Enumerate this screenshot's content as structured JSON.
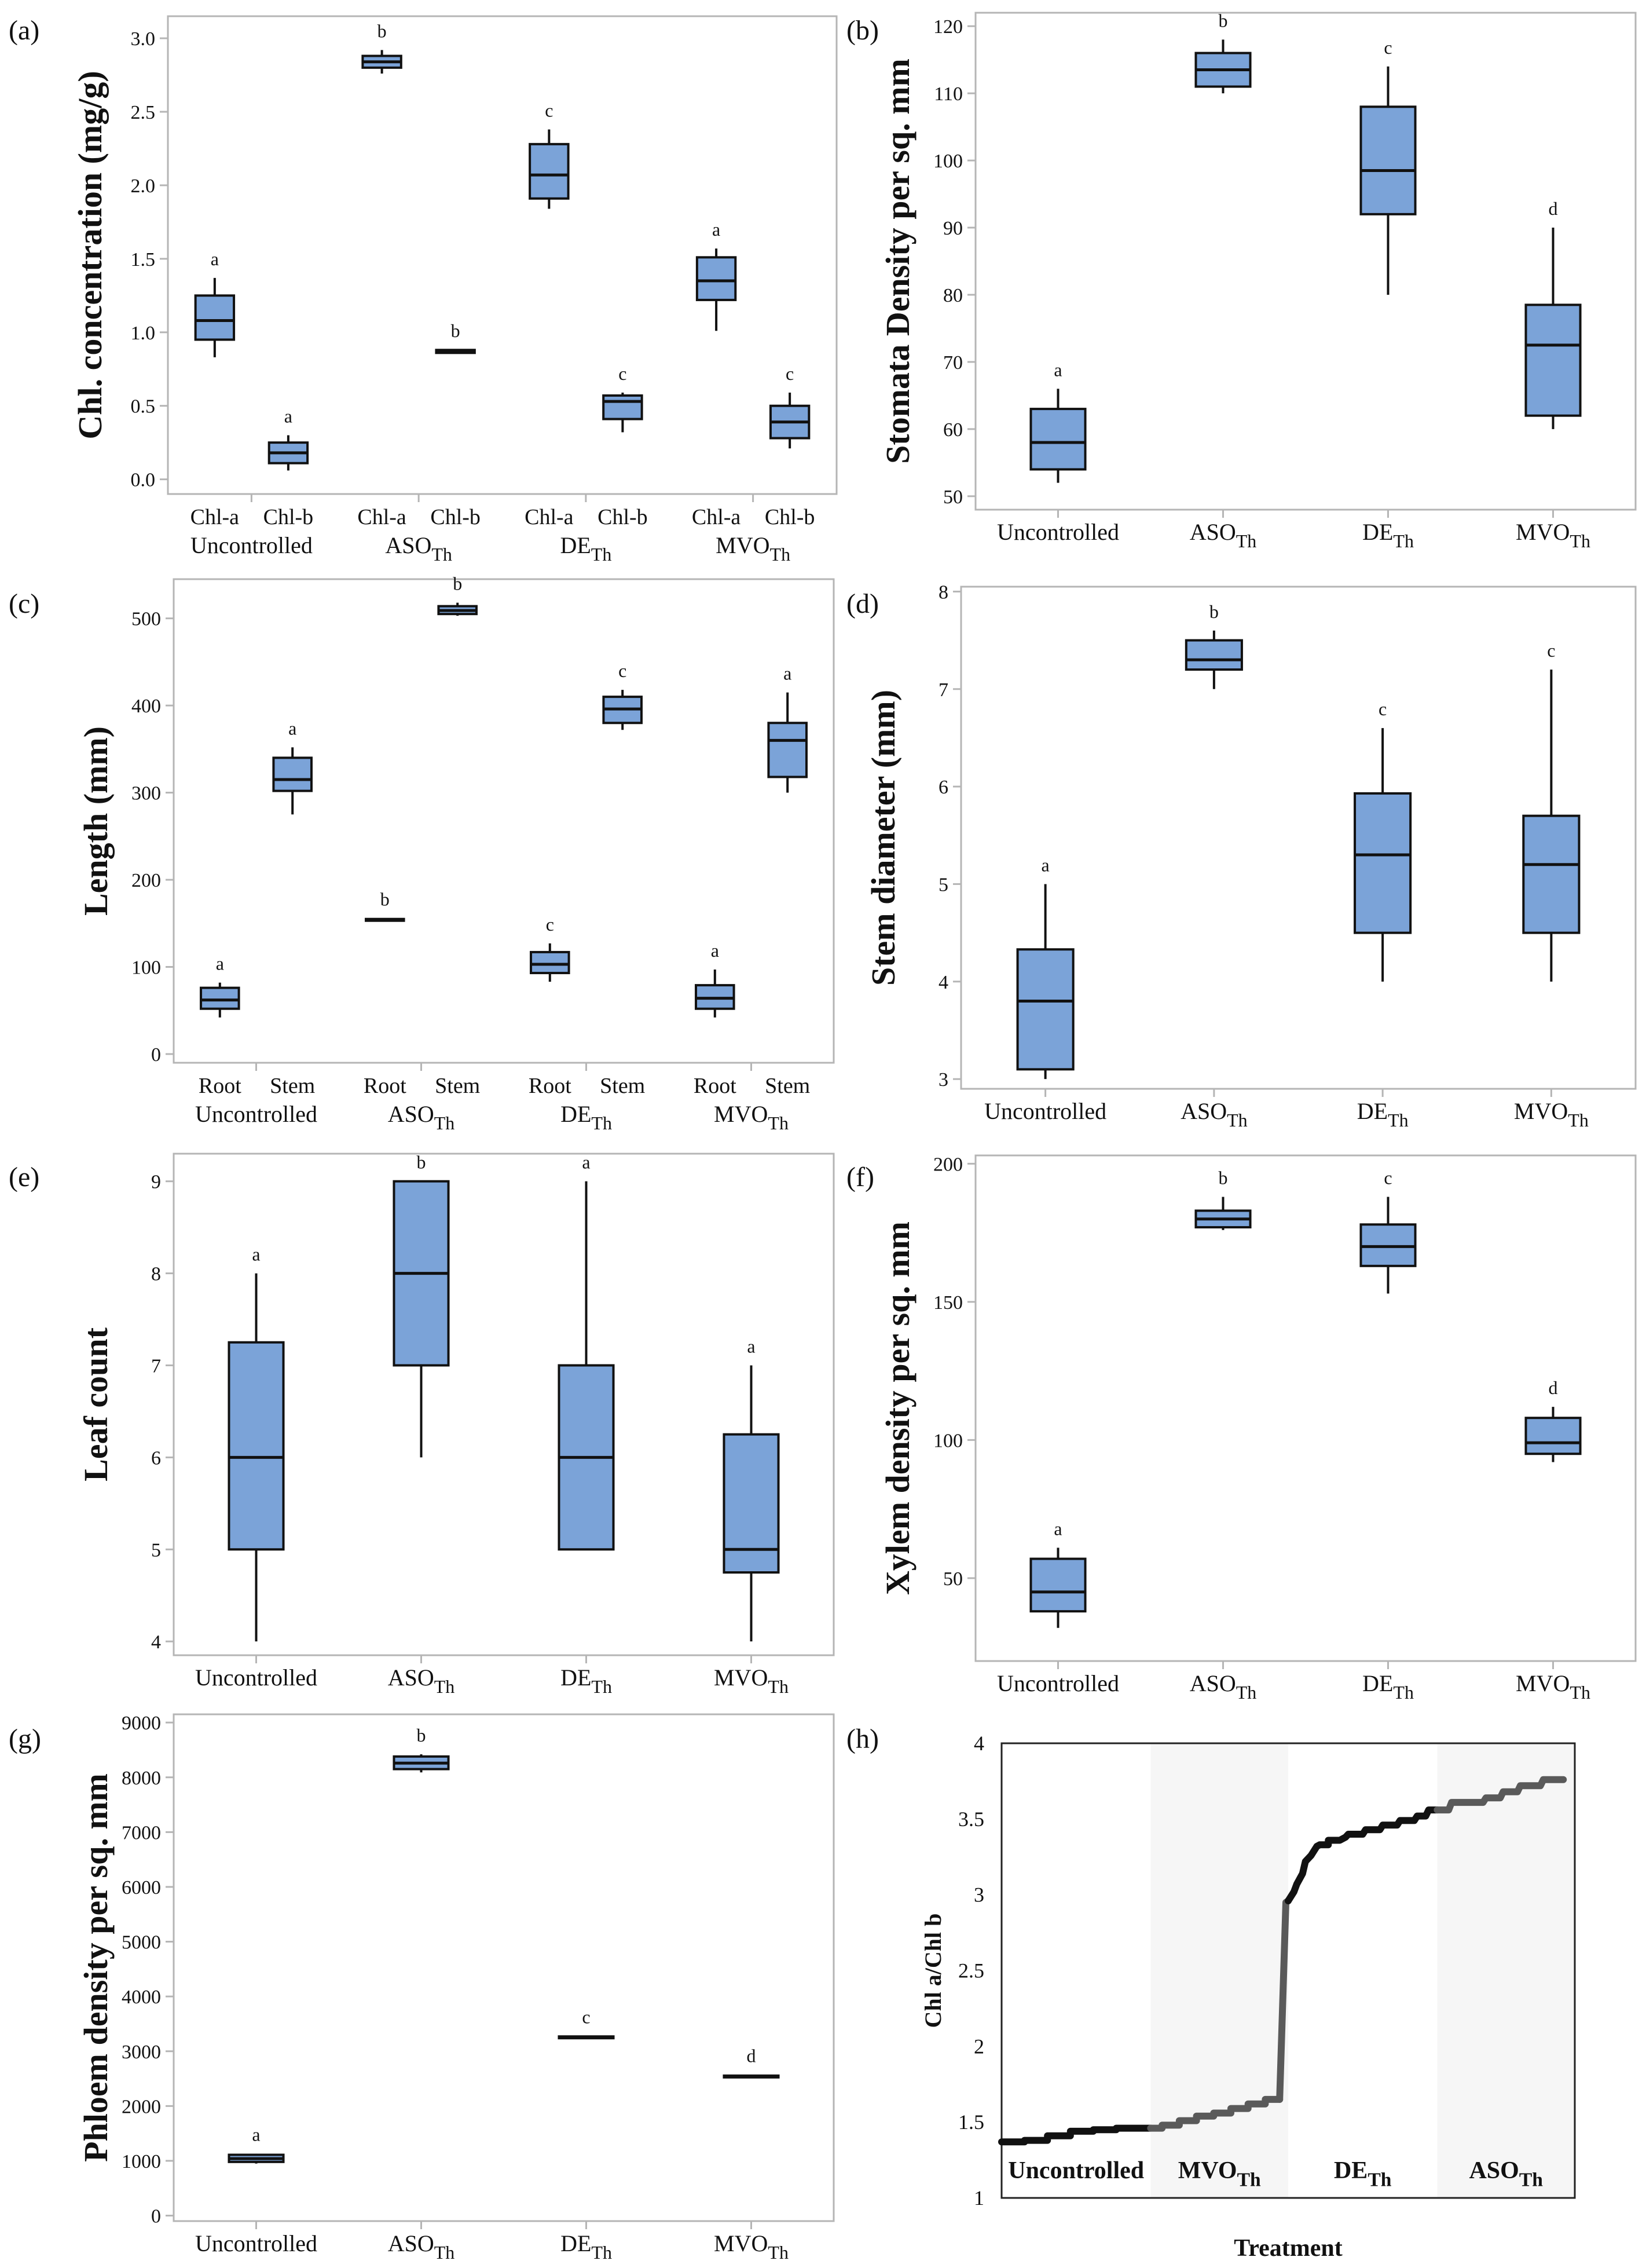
{
  "colors": {
    "box_fill": "#7ba3d8",
    "box_stroke": "#111111",
    "axis_frame": "#b5b5b5",
    "line_dark": "#111111",
    "line_grey": "#5a5a5a",
    "band": "#f6f6f6"
  },
  "chart_data": [
    {
      "id": "a",
      "panel_label": "(a)",
      "type": "boxplot",
      "ylabel": "Chl. concentration (mg/g)",
      "ylim": [
        -0.1,
        3.15
      ],
      "yticks": [
        0.0,
        0.5,
        1.0,
        1.5,
        2.0,
        2.5,
        3.0
      ],
      "ytick_labels": [
        "0.0",
        "0.5",
        "1.0",
        "1.5",
        "2.0",
        "2.5",
        "3.0"
      ],
      "groups": [
        {
          "label": "Uncontrolled",
          "sub": ""
        },
        {
          "label": "ASO",
          "sub": "Th"
        },
        {
          "label": "DE",
          "sub": "Th"
        },
        {
          "label": "MVO",
          "sub": "Th"
        }
      ],
      "boxes": [
        {
          "group": 0,
          "label": "Chl-a",
          "min": 0.83,
          "q1": 0.95,
          "median": 1.08,
          "q3": 1.25,
          "max": 1.37,
          "letter": "a"
        },
        {
          "group": 0,
          "label": "Chl-b",
          "min": 0.06,
          "q1": 0.11,
          "median": 0.18,
          "q3": 0.25,
          "max": 0.3,
          "letter": "a"
        },
        {
          "group": 1,
          "label": "Chl-a",
          "min": 2.76,
          "q1": 2.8,
          "median": 2.84,
          "q3": 2.88,
          "max": 2.92,
          "letter": "b"
        },
        {
          "group": 1,
          "label": "Chl-b",
          "min": 0.86,
          "q1": 0.86,
          "median": 0.87,
          "q3": 0.88,
          "max": 0.88,
          "letter": "b"
        },
        {
          "group": 2,
          "label": "Chl-a",
          "min": 1.84,
          "q1": 1.91,
          "median": 2.07,
          "q3": 2.28,
          "max": 2.38,
          "letter": "c"
        },
        {
          "group": 2,
          "label": "Chl-b",
          "min": 0.32,
          "q1": 0.41,
          "median": 0.53,
          "q3": 0.57,
          "max": 0.59,
          "letter": "c"
        },
        {
          "group": 3,
          "label": "Chl-a",
          "min": 1.01,
          "q1": 1.22,
          "median": 1.35,
          "q3": 1.51,
          "max": 1.57,
          "letter": "a"
        },
        {
          "group": 3,
          "label": "Chl-b",
          "min": 0.21,
          "q1": 0.28,
          "median": 0.39,
          "q3": 0.5,
          "max": 0.59,
          "letter": "c"
        }
      ]
    },
    {
      "id": "b",
      "panel_label": "(b)",
      "type": "boxplot",
      "ylabel": "Stomata Density per sq. mm",
      "ylim": [
        48,
        122
      ],
      "yticks": [
        50,
        60,
        70,
        80,
        90,
        100,
        110,
        120
      ],
      "ytick_labels": [
        "50",
        "60",
        "70",
        "80",
        "90",
        "100",
        "110",
        "120"
      ],
      "groups": [
        {
          "label": "Uncontrolled",
          "sub": ""
        },
        {
          "label": "ASO",
          "sub": "Th"
        },
        {
          "label": "DE",
          "sub": "Th"
        },
        {
          "label": "MVO",
          "sub": "Th"
        }
      ],
      "boxes": [
        {
          "group": 0,
          "label": "",
          "min": 52,
          "q1": 54,
          "median": 58,
          "q3": 63,
          "max": 66,
          "letter": "a"
        },
        {
          "group": 1,
          "label": "",
          "min": 110,
          "q1": 111,
          "median": 113.5,
          "q3": 116,
          "max": 118,
          "letter": "b"
        },
        {
          "group": 2,
          "label": "",
          "min": 80,
          "q1": 92,
          "median": 98.5,
          "q3": 108,
          "max": 114,
          "letter": "c"
        },
        {
          "group": 3,
          "label": "",
          "min": 60,
          "q1": 62,
          "median": 72.5,
          "q3": 78.5,
          "max": 90,
          "letter": "d"
        }
      ]
    },
    {
      "id": "c",
      "panel_label": "(c)",
      "type": "boxplot",
      "ylabel": "Length (mm)",
      "ylim": [
        -10,
        545
      ],
      "yticks": [
        0,
        100,
        200,
        300,
        400,
        500
      ],
      "ytick_labels": [
        "0",
        "100",
        "200",
        "300",
        "400",
        "500"
      ],
      "groups": [
        {
          "label": "Uncontrolled",
          "sub": ""
        },
        {
          "label": "ASO",
          "sub": "Th"
        },
        {
          "label": "DE",
          "sub": "Th"
        },
        {
          "label": "MVO",
          "sub": "Th"
        }
      ],
      "boxes": [
        {
          "group": 0,
          "label": "Root",
          "min": 42,
          "q1": 52,
          "median": 62,
          "q3": 76,
          "max": 82,
          "letter": "a"
        },
        {
          "group": 0,
          "label": "Stem",
          "min": 275,
          "q1": 302,
          "median": 315,
          "q3": 340,
          "max": 352,
          "letter": "a"
        },
        {
          "group": 1,
          "label": "Root",
          "min": 152,
          "q1": 153,
          "median": 154,
          "q3": 155,
          "max": 156,
          "letter": "b"
        },
        {
          "group": 1,
          "label": "Stem",
          "min": 503,
          "q1": 505,
          "median": 509,
          "q3": 514,
          "max": 518,
          "letter": "b"
        },
        {
          "group": 2,
          "label": "Root",
          "min": 83,
          "q1": 93,
          "median": 103,
          "q3": 117,
          "max": 127,
          "letter": "c"
        },
        {
          "group": 2,
          "label": "Stem",
          "min": 372,
          "q1": 380,
          "median": 396,
          "q3": 410,
          "max": 418,
          "letter": "c"
        },
        {
          "group": 3,
          "label": "Root",
          "min": 42,
          "q1": 52,
          "median": 64,
          "q3": 79,
          "max": 97,
          "letter": "a"
        },
        {
          "group": 3,
          "label": "Stem",
          "min": 300,
          "q1": 318,
          "median": 360,
          "q3": 380,
          "max": 415,
          "letter": "a"
        }
      ]
    },
    {
      "id": "d",
      "panel_label": "(d)",
      "type": "boxplot",
      "ylabel": "Stem diameter (mm)",
      "ylim": [
        2.9,
        8.05
      ],
      "yticks": [
        3,
        4,
        5,
        6,
        7,
        8
      ],
      "ytick_labels": [
        "3",
        "4",
        "5",
        "6",
        "7",
        "8"
      ],
      "groups": [
        {
          "label": "Uncontrolled",
          "sub": ""
        },
        {
          "label": "ASO",
          "sub": "Th"
        },
        {
          "label": "DE",
          "sub": "Th"
        },
        {
          "label": "MVO",
          "sub": "Th"
        }
      ],
      "boxes": [
        {
          "group": 0,
          "label": "",
          "min": 3.0,
          "q1": 3.1,
          "median": 3.8,
          "q3": 4.33,
          "max": 5.0,
          "letter": "a"
        },
        {
          "group": 1,
          "label": "",
          "min": 7.0,
          "q1": 7.2,
          "median": 7.3,
          "q3": 7.5,
          "max": 7.6,
          "letter": "b"
        },
        {
          "group": 2,
          "label": "",
          "min": 4.0,
          "q1": 4.5,
          "median": 5.3,
          "q3": 5.93,
          "max": 6.6,
          "letter": "c"
        },
        {
          "group": 3,
          "label": "",
          "min": 4.0,
          "q1": 4.5,
          "median": 5.2,
          "q3": 5.7,
          "max": 7.2,
          "letter": "c"
        }
      ]
    },
    {
      "id": "e",
      "panel_label": "(e)",
      "type": "boxplot",
      "ylabel": "Leaf count",
      "ylim": [
        3.85,
        9.3
      ],
      "yticks": [
        4,
        5,
        6,
        7,
        8,
        9
      ],
      "ytick_labels": [
        "4",
        "5",
        "6",
        "7",
        "8",
        "9"
      ],
      "groups": [
        {
          "label": "Uncontrolled",
          "sub": ""
        },
        {
          "label": "ASO",
          "sub": "Th"
        },
        {
          "label": "DE",
          "sub": "Th"
        },
        {
          "label": "MVO",
          "sub": "Th"
        }
      ],
      "boxes": [
        {
          "group": 0,
          "label": "",
          "min": 4,
          "q1": 5,
          "median": 6,
          "q3": 7.25,
          "max": 8,
          "letter": "a"
        },
        {
          "group": 1,
          "label": "",
          "min": 6,
          "q1": 7,
          "median": 8,
          "q3": 9,
          "max": 9,
          "letter": "b"
        },
        {
          "group": 2,
          "label": "",
          "min": 5,
          "q1": 5,
          "median": 6,
          "q3": 7,
          "max": 9,
          "letter": "a"
        },
        {
          "group": 3,
          "label": "",
          "min": 4,
          "q1": 4.75,
          "median": 5,
          "q3": 6.25,
          "max": 7,
          "letter": "a"
        }
      ]
    },
    {
      "id": "f",
      "panel_label": "(f)",
      "type": "boxplot",
      "ylabel": "Xylem density per sq. mm",
      "ylim": [
        20,
        203
      ],
      "yticks": [
        50,
        100,
        150,
        200
      ],
      "ytick_labels": [
        "50",
        "100",
        "150",
        "200"
      ],
      "groups": [
        {
          "label": "Uncontrolled",
          "sub": ""
        },
        {
          "label": "ASO",
          "sub": "Th"
        },
        {
          "label": "DE",
          "sub": "Th"
        },
        {
          "label": "MVO",
          "sub": "Th"
        }
      ],
      "boxes": [
        {
          "group": 0,
          "label": "",
          "min": 32,
          "q1": 38,
          "median": 45,
          "q3": 57,
          "max": 61,
          "letter": "a"
        },
        {
          "group": 1,
          "label": "",
          "min": 176,
          "q1": 177,
          "median": 180,
          "q3": 183,
          "max": 188,
          "letter": "b"
        },
        {
          "group": 2,
          "label": "",
          "min": 153,
          "q1": 163,
          "median": 170,
          "q3": 178,
          "max": 188,
          "letter": "c"
        },
        {
          "group": 3,
          "label": "",
          "min": 92,
          "q1": 95,
          "median": 99,
          "q3": 108,
          "max": 112,
          "letter": "d"
        }
      ]
    },
    {
      "id": "g",
      "panel_label": "(g)",
      "type": "boxplot",
      "ylabel": "Phloem density per sq. mm",
      "ylim": [
        -100,
        9150
      ],
      "yticks": [
        0,
        1000,
        2000,
        3000,
        4000,
        5000,
        6000,
        7000,
        8000,
        9000
      ],
      "ytick_labels": [
        "0",
        "1000",
        "2000",
        "3000",
        "4000",
        "5000",
        "6000",
        "7000",
        "8000",
        "9000"
      ],
      "groups": [
        {
          "label": "Uncontrolled",
          "sub": ""
        },
        {
          "label": "ASO",
          "sub": "Th"
        },
        {
          "label": "DE",
          "sub": "Th"
        },
        {
          "label": "MVO",
          "sub": "Th"
        }
      ],
      "boxes": [
        {
          "group": 0,
          "label": "",
          "min": 950,
          "q1": 980,
          "median": 1040,
          "q3": 1110,
          "max": 1130,
          "letter": "a"
        },
        {
          "group": 1,
          "label": "",
          "min": 8090,
          "q1": 8150,
          "median": 8260,
          "q3": 8380,
          "max": 8420,
          "letter": "b"
        },
        {
          "group": 2,
          "label": "",
          "min": 3240,
          "q1": 3250,
          "median": 3260,
          "q3": 3270,
          "max": 3280,
          "letter": "c"
        },
        {
          "group": 3,
          "label": "",
          "min": 2520,
          "q1": 2535,
          "median": 2545,
          "q3": 2555,
          "max": 2570,
          "letter": "d"
        }
      ]
    },
    {
      "id": "h",
      "panel_label": "(h)",
      "type": "line",
      "ylabel": "Chl a/Chl b",
      "xlabel": "Treatment",
      "ylim": [
        1,
        4
      ],
      "xlim": [
        0,
        100
      ],
      "yticks": [
        1,
        1.5,
        2,
        2.5,
        3,
        3.5,
        4
      ],
      "ytick_labels": [
        "1",
        "1.5",
        "2",
        "2.5",
        "3",
        "3.5",
        "4"
      ],
      "segments": [
        {
          "label": "Uncontrolled",
          "sub": "",
          "x_range": [
            0,
            26
          ],
          "shaded": false
        },
        {
          "label": "MVO",
          "sub": "Th",
          "x_range": [
            26,
            50
          ],
          "shaded": true
        },
        {
          "label": "DE",
          "sub": "Th",
          "x_range": [
            50,
            76
          ],
          "shaded": false
        },
        {
          "label": "ASO",
          "sub": "Th",
          "x_range": [
            76,
            100
          ],
          "shaded": true
        }
      ],
      "series": [
        {
          "name": "Uncontrolled",
          "color": "dark",
          "x": [
            0,
            4,
            4,
            8,
            8,
            12,
            12,
            16,
            16,
            20,
            20,
            26
          ],
          "y": [
            1.37,
            1.37,
            1.38,
            1.38,
            1.41,
            1.41,
            1.44,
            1.44,
            1.45,
            1.45,
            1.46,
            1.46
          ]
        },
        {
          "name": "MVO-Th",
          "color": "grey",
          "x": [
            26,
            28,
            28,
            31,
            31,
            34,
            34,
            37,
            37,
            40,
            40,
            43,
            43,
            46,
            46,
            48.5
          ],
          "y": [
            1.46,
            1.46,
            1.48,
            1.48,
            1.51,
            1.51,
            1.54,
            1.54,
            1.56,
            1.56,
            1.59,
            1.59,
            1.62,
            1.62,
            1.65,
            1.65
          ]
        },
        {
          "name": "transition",
          "color": "grey",
          "x": [
            48.5,
            49.6,
            50
          ],
          "y": [
            1.65,
            2.95,
            2.96
          ]
        },
        {
          "name": "DE-Th",
          "color": "dark",
          "x": [
            50,
            51,
            51.5,
            52.5,
            53,
            54,
            55,
            55.5,
            57,
            57,
            59,
            59,
            60,
            60.5,
            63,
            63.5,
            66,
            66.5,
            69,
            69.5,
            72,
            72.5,
            74,
            74.5,
            76
          ],
          "y": [
            2.96,
            3.02,
            3.07,
            3.14,
            3.22,
            3.26,
            3.32,
            3.33,
            3.33,
            3.36,
            3.36,
            3.36,
            3.38,
            3.4,
            3.4,
            3.43,
            3.43,
            3.46,
            3.46,
            3.49,
            3.49,
            3.52,
            3.52,
            3.56,
            3.56
          ]
        },
        {
          "name": "ASO-Th",
          "color": "grey",
          "x": [
            76,
            78,
            78.5,
            84,
            84.5,
            87,
            87.5,
            90,
            90.5,
            94,
            94.5,
            98
          ],
          "y": [
            3.56,
            3.56,
            3.61,
            3.61,
            3.64,
            3.64,
            3.68,
            3.68,
            3.72,
            3.72,
            3.76,
            3.76
          ]
        }
      ]
    }
  ]
}
